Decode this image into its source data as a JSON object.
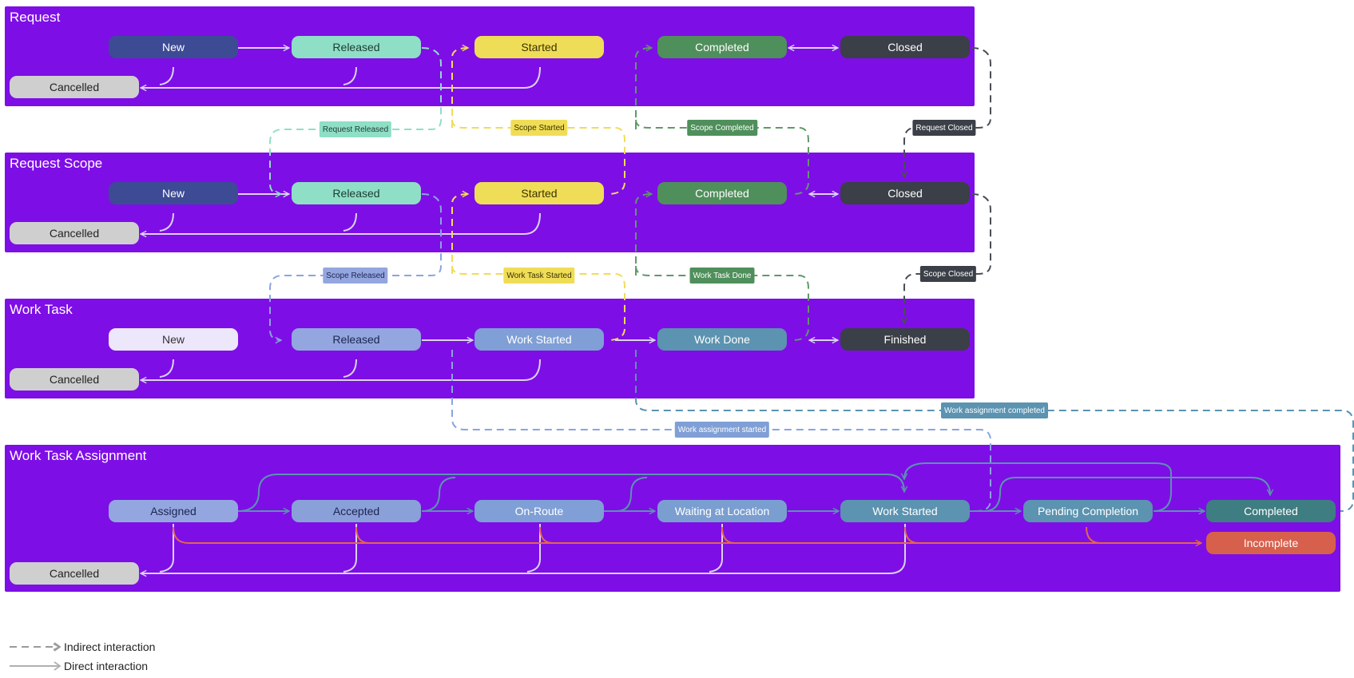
{
  "colors": {
    "lane": "#7e0ee6",
    "new": "#3d4b94",
    "released": "#8fdfc6",
    "started": "#f0dd57",
    "completed": "#4f8f5b",
    "closed": "#3b3f47",
    "cancelled": "#cfcfcf",
    "task_new": "#ece7fb",
    "task_released": "#93a6df",
    "task_started": "#7f9fd6",
    "task_done": "#5b93b0",
    "assign_blue": "#7f9fd6",
    "assign_teal": "#5b93b0",
    "assign_completed": "#3e7d82",
    "incomplete": "#d7604c",
    "arrow_direct": "#d9d2f2",
    "arrow_incomplete": "#e1674d"
  },
  "lanes": [
    {
      "id": "request",
      "title": "Request"
    },
    {
      "id": "scope",
      "title": "Request Scope"
    },
    {
      "id": "task",
      "title": "Work Task"
    },
    {
      "id": "assignment",
      "title": "Work Task Assignment"
    }
  ],
  "nodes": {
    "request": {
      "new": "New",
      "released": "Released",
      "started": "Started",
      "completed": "Completed",
      "closed": "Closed",
      "cancelled": "Cancelled"
    },
    "scope": {
      "new": "New",
      "released": "Released",
      "started": "Started",
      "completed": "Completed",
      "closed": "Closed",
      "cancelled": "Cancelled"
    },
    "task": {
      "new": "New",
      "released": "Released",
      "started": "Work Started",
      "done": "Work Done",
      "finished": "Finished",
      "cancelled": "Cancelled"
    },
    "assignment": {
      "assigned": "Assigned",
      "accepted": "Accepted",
      "onroute": "On-Route",
      "waiting": "Waiting at Location",
      "started": "Work Started",
      "pending": "Pending Completion",
      "completed": "Completed",
      "incomplete": "Incomplete",
      "cancelled": "Cancelled"
    }
  },
  "events": {
    "request_released": "Request Released",
    "scope_started": "Scope Started",
    "scope_completed": "Scope Completed",
    "request_closed": "Request Closed",
    "scope_released": "Scope Released",
    "work_task_started": "Work Task Started",
    "work_task_done": "Work Task Done",
    "scope_closed": "Scope Closed",
    "work_assignment_completed": "Work assignment completed",
    "work_assignment_started": "Work assignment started"
  },
  "legend": {
    "indirect": "Indirect interaction",
    "direct": "Direct interaction"
  }
}
